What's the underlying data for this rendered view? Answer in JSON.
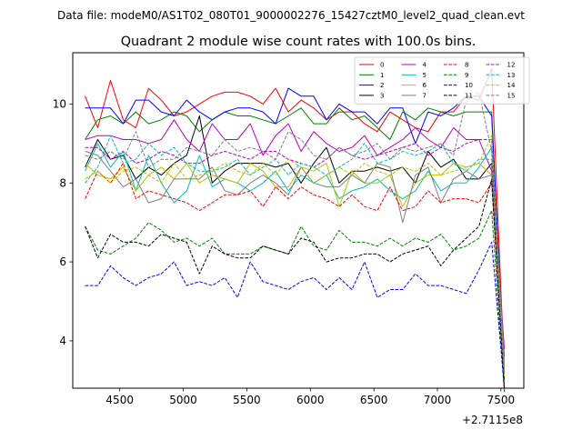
{
  "chart_data": {
    "type": "line",
    "suptitle": "Data file: modeM0/AS1T02_080T01_9000002276_15427cztM0_level2_quad_clean.evt",
    "title": "Quadrant 2 module wise count rates with 100.0s bins.",
    "xlabel": "",
    "ylabel": "",
    "x_offset_label": "+2.7115e8",
    "xlim": [
      4130,
      7680
    ],
    "ylim": [
      2.8,
      11.3
    ],
    "xticks": [
      4500,
      5000,
      5500,
      6000,
      6500,
      7000,
      7500
    ],
    "yticks": [
      4,
      6,
      8,
      10
    ],
    "x": [
      4227,
      4327,
      4427,
      4527,
      4627,
      4727,
      4827,
      4927,
      5027,
      5127,
      5227,
      5327,
      5427,
      5527,
      5627,
      5727,
      5827,
      5927,
      6027,
      6127,
      6227,
      6327,
      6427,
      6527,
      6627,
      6727,
      6827,
      6927,
      7027,
      7127,
      7227,
      7327,
      7427,
      7527
    ],
    "legend": {
      "location": "top-right",
      "columns": 4
    },
    "series": [
      {
        "name": "0",
        "color": "#ff0000",
        "dash": "solid",
        "values": [
          10.2,
          9.4,
          10.6,
          9.6,
          9.4,
          10.4,
          10.1,
          9.7,
          9.8,
          10.0,
          10.2,
          10.3,
          10.3,
          10.2,
          10.0,
          10.4,
          9.8,
          10.1,
          9.9,
          9.6,
          9.8,
          9.8,
          9.5,
          9.3,
          9.8,
          9.6,
          9.4,
          9.3,
          9.8,
          9.8,
          10.2,
          10.1,
          10.9,
          3.2
        ]
      },
      {
        "name": "1",
        "color": "#008000",
        "dash": "solid",
        "values": [
          9.1,
          9.6,
          9.7,
          9.5,
          9.8,
          9.5,
          9.6,
          9.8,
          9.7,
          9.3,
          9.6,
          9.8,
          9.7,
          9.7,
          9.6,
          9.5,
          9.7,
          9.9,
          9.5,
          9.5,
          9.9,
          9.6,
          9.7,
          9.4,
          9.1,
          9.8,
          9.6,
          9.9,
          9.8,
          9.7,
          9.8,
          9.8,
          9.8,
          3.0
        ]
      },
      {
        "name": "2",
        "color": "#0000ff",
        "dash": "solid",
        "values": [
          9.9,
          9.9,
          9.9,
          9.5,
          10.1,
          10.1,
          9.8,
          9.7,
          10.1,
          9.8,
          9.6,
          9.8,
          9.9,
          9.9,
          9.8,
          9.5,
          10.4,
          10.2,
          10.2,
          9.6,
          10.0,
          9.8,
          9.8,
          9.5,
          9.9,
          9.9,
          9.0,
          9.8,
          9.7,
          9.9,
          10.2,
          10.2,
          9.7,
          3.1
        ]
      },
      {
        "name": "3",
        "color": "#000000",
        "dash": "solid",
        "values": [
          8.4,
          9.1,
          8.6,
          8.7,
          8.1,
          8.4,
          8.2,
          8.5,
          8.7,
          9.7,
          8.0,
          8.3,
          8.5,
          8.5,
          8.5,
          8.4,
          8.5,
          8.0,
          8.5,
          8.9,
          8.0,
          8.3,
          8.3,
          8.4,
          8.3,
          8.4,
          8.0,
          8.8,
          8.4,
          8.6,
          8.1,
          8.1,
          8.5,
          3.6
        ]
      },
      {
        "name": "4",
        "color": "#bf00bf",
        "dash": "solid",
        "values": [
          9.1,
          9.2,
          9.2,
          9.1,
          9.1,
          9.0,
          9.1,
          9.6,
          9.1,
          8.8,
          9.5,
          9.1,
          9.1,
          9.5,
          8.7,
          9.2,
          9.5,
          8.8,
          9.3,
          9.0,
          8.8,
          8.9,
          9.2,
          8.7,
          8.9,
          9.1,
          9.4,
          9.1,
          8.9,
          9.4,
          9.1,
          9.1,
          8.3,
          3.8
        ]
      },
      {
        "name": "5",
        "color": "#00bfbf",
        "dash": "solid",
        "values": [
          8.3,
          9.0,
          8.4,
          8.8,
          7.8,
          8.7,
          8.0,
          7.5,
          7.8,
          8.7,
          7.9,
          8.1,
          8.0,
          7.8,
          8.0,
          8.3,
          7.8,
          8.2,
          8.0,
          8.2,
          7.6,
          7.8,
          7.9,
          8.1,
          7.8,
          7.6,
          7.8,
          8.3,
          7.8,
          8.0,
          8.0,
          8.4,
          8.9,
          3.4
        ]
      },
      {
        "name": "6",
        "color": "#bfbf00",
        "dash": "solid",
        "values": [
          8.5,
          8.2,
          8.1,
          8.4,
          7.8,
          8.2,
          8.4,
          8.1,
          8.5,
          8.0,
          8.2,
          8.1,
          8.0,
          8.5,
          8.3,
          7.9,
          7.9,
          8.4,
          8.3,
          8.5,
          7.4,
          8.3,
          8.0,
          8.0,
          8.2,
          7.4,
          8.0,
          8.2,
          8.2,
          8.5,
          8.4,
          8.5,
          8.2,
          3.3
        ]
      },
      {
        "name": "7",
        "color": "#7f7f7f",
        "dash": "solid",
        "values": [
          8.8,
          8.7,
          8.3,
          7.9,
          8.1,
          7.5,
          7.6,
          8.1,
          8.1,
          8.1,
          8.4,
          7.8,
          7.7,
          8.0,
          8.2,
          8.0,
          7.7,
          8.4,
          8.0,
          7.9,
          7.9,
          8.2,
          8.0,
          8.5,
          8.4,
          7.0,
          8.2,
          8.4,
          7.5,
          8.1,
          8.3,
          8.1,
          8.2,
          3.5
        ]
      },
      {
        "name": "8",
        "color": "#ff0000",
        "dash": "dashed",
        "values": [
          7.6,
          8.3,
          8.0,
          8.5,
          7.6,
          7.8,
          7.7,
          7.6,
          7.5,
          7.3,
          7.5,
          7.7,
          7.7,
          7.8,
          7.4,
          7.9,
          7.6,
          7.9,
          7.7,
          7.6,
          7.4,
          7.7,
          7.4,
          7.3,
          7.9,
          7.3,
          7.4,
          7.8,
          7.5,
          7.6,
          7.6,
          7.5,
          8.0,
          2.8
        ]
      },
      {
        "name": "9",
        "color": "#008000",
        "dash": "dashed",
        "values": [
          6.9,
          6.3,
          6.2,
          6.4,
          6.6,
          7.0,
          6.8,
          6.5,
          6.6,
          6.4,
          6.6,
          6.2,
          6.2,
          6.2,
          6.4,
          6.3,
          6.2,
          6.9,
          6.4,
          6.3,
          6.8,
          6.5,
          6.5,
          6.4,
          6.6,
          6.4,
          6.6,
          6.5,
          6.7,
          6.3,
          6.4,
          6.6,
          7.3,
          2.7
        ]
      },
      {
        "name": "10",
        "color": "#0000ff",
        "dash": "dashed",
        "values": [
          5.4,
          5.4,
          5.9,
          5.6,
          5.4,
          5.6,
          5.7,
          6.0,
          5.4,
          5.5,
          5.4,
          5.6,
          5.1,
          6.0,
          5.5,
          5.4,
          5.3,
          5.5,
          5.6,
          5.3,
          5.6,
          5.3,
          6.0,
          5.1,
          5.3,
          5.3,
          5.7,
          5.4,
          5.4,
          5.3,
          5.2,
          5.8,
          6.5,
          2.8
        ]
      },
      {
        "name": "11",
        "color": "#000000",
        "dash": "dashed",
        "values": [
          6.9,
          6.1,
          6.7,
          6.5,
          6.5,
          6.4,
          6.7,
          6.6,
          6.5,
          5.7,
          6.4,
          6.2,
          6.1,
          6.1,
          6.4,
          6.3,
          6.2,
          6.6,
          6.5,
          6.0,
          6.1,
          6.1,
          6.2,
          6.2,
          6.0,
          6.2,
          6.3,
          6.4,
          5.9,
          6.3,
          6.6,
          6.9,
          8.1,
          2.8
        ]
      },
      {
        "name": "12",
        "color": "#bf00bf",
        "dash": "dashed",
        "values": [
          8.9,
          8.9,
          8.6,
          8.8,
          8.5,
          8.6,
          8.8,
          8.7,
          8.5,
          8.5,
          8.7,
          8.8,
          8.7,
          8.6,
          8.8,
          8.8,
          8.6,
          8.5,
          8.4,
          8.6,
          8.9,
          8.7,
          8.6,
          8.7,
          8.8,
          8.9,
          9.0,
          8.7,
          8.9,
          8.8,
          9.0,
          9.1,
          9.1,
          3.1
        ]
      },
      {
        "name": "13",
        "color": "#00bfbf",
        "dash": "dashed",
        "values": [
          8.0,
          8.4,
          9.2,
          8.5,
          8.6,
          9.0,
          8.7,
          8.9,
          8.5,
          8.3,
          8.3,
          8.4,
          8.6,
          8.2,
          8.4,
          8.6,
          8.2,
          8.5,
          8.4,
          8.2,
          8.4,
          8.6,
          9.0,
          8.5,
          8.6,
          8.8,
          8.7,
          8.8,
          9.0,
          8.5,
          8.3,
          8.6,
          8.6,
          3.1
        ]
      },
      {
        "name": "14",
        "color": "#bfbf00",
        "dash": "dashed",
        "values": [
          8.1,
          8.3,
          8.0,
          8.3,
          8.4,
          8.2,
          8.0,
          8.5,
          8.1,
          8.2,
          8.3,
          8.5,
          8.3,
          8.2,
          8.5,
          8.2,
          8.6,
          8.4,
          8.0,
          8.2,
          8.4,
          8.2,
          8.5,
          8.3,
          8.2,
          8.4,
          8.3,
          8.5,
          8.2,
          8.3,
          8.4,
          8.5,
          9.2,
          3.1
        ]
      },
      {
        "name": "15",
        "color": "#7f7f7f",
        "dash": "dashed",
        "values": [
          8.7,
          8.6,
          8.8,
          8.6,
          9.3,
          8.4,
          8.6,
          8.6,
          8.9,
          8.8,
          8.7,
          9.1,
          8.8,
          8.9,
          8.8,
          8.6,
          9.3,
          9.1,
          8.7,
          8.6,
          8.9,
          8.7,
          8.8,
          9.0,
          8.6,
          8.9,
          8.8,
          8.9,
          9.0,
          8.7,
          10.1,
          10.3,
          8.8,
          3.2
        ]
      }
    ]
  }
}
